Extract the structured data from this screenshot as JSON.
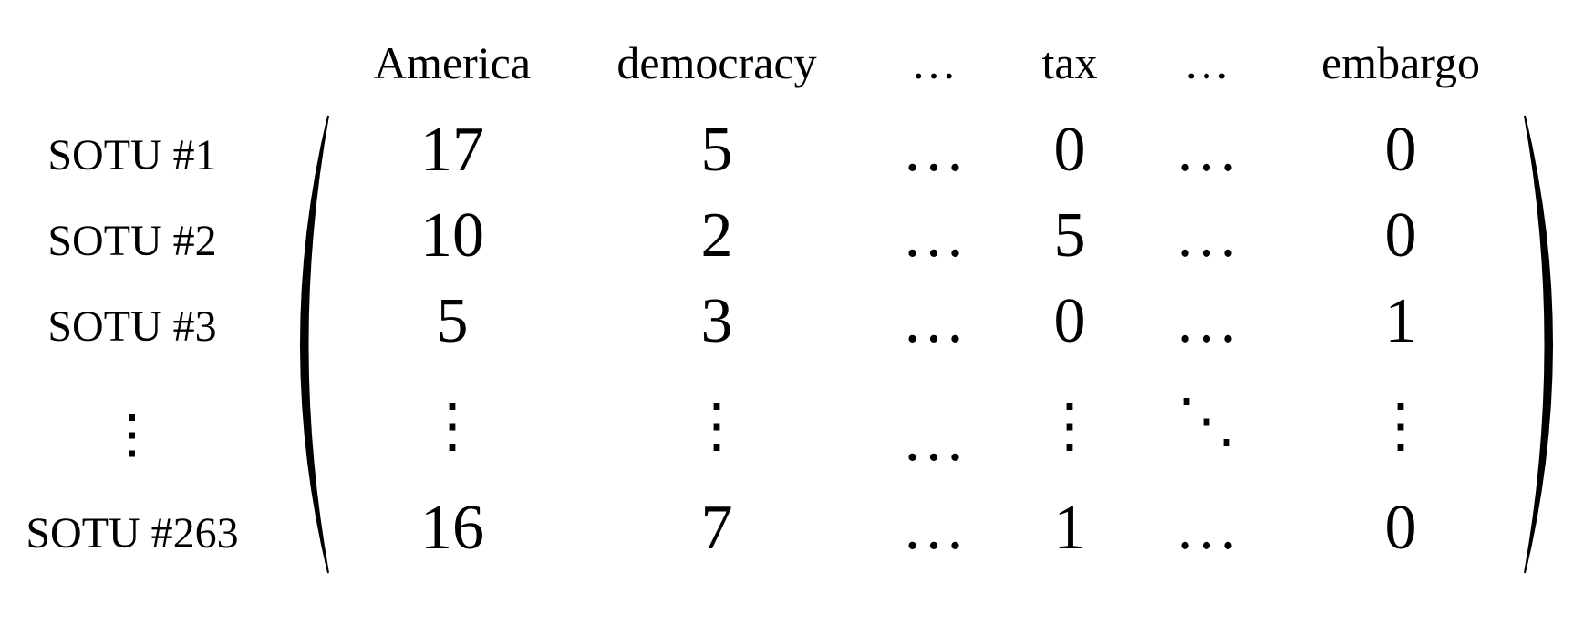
{
  "column_headers": [
    "America",
    "democracy",
    "…",
    "tax",
    "…",
    "embargo"
  ],
  "row_labels": [
    "SOTU #1",
    "SOTU #2",
    "SOTU #3",
    "⋮",
    "SOTU #263"
  ],
  "matrix": [
    [
      "17",
      "5",
      "…",
      "0",
      "…",
      "0"
    ],
    [
      "10",
      "2",
      "…",
      "5",
      "…",
      "0"
    ],
    [
      "5",
      "3",
      "…",
      "0",
      "…",
      "1"
    ],
    [
      "⋮",
      "⋮",
      "…",
      "⋮",
      "⋱",
      "⋮"
    ],
    [
      "16",
      "7",
      "…",
      "1",
      "…",
      "0"
    ]
  ]
}
